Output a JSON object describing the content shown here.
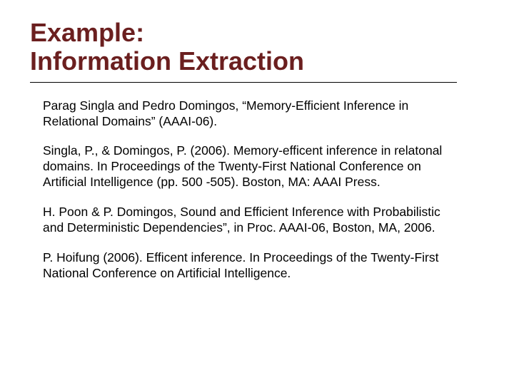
{
  "title_color": "#6b1f1f",
  "text_color": "#000000",
  "background_color": "#ffffff",
  "underline_color": "#000000",
  "title_line1": "Example:",
  "title_line2": "Information Extraction",
  "paragraphs": [
    "Parag Singla and Pedro Domingos, “Memory-Efficient Inference in Relational Domains” (AAAI-06).",
    "Singla, P., & Domingos, P. (2006). Memory-efficent inference in relatonal domains. In Proceedings of the Twenty-First National Conference on Artificial Intelligence (pp. 500 -505). Boston, MA: AAAI Press.",
    "H. Poon & P. Domingos, Sound and Efficient Inference with Probabilistic and Deterministic Dependencies”, in Proc. AAAI-06, Boston, MA, 2006.",
    "P. Hoifung (2006). Efficent inference. In Proceedings of the Twenty-First National Conference on Artificial Intelligence."
  ],
  "title_fontsize": 36,
  "body_fontsize": 17.5
}
